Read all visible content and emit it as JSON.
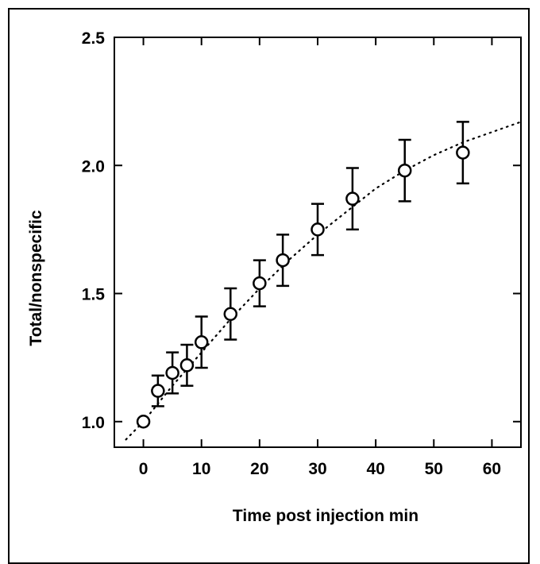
{
  "chart_data": {
    "type": "scatter",
    "xlabel": "Time post injection min",
    "ylabel": "Total/nonspecific",
    "xlim": [
      -5,
      65
    ],
    "ylim": [
      0.9,
      2.5
    ],
    "xticks": [
      0,
      10,
      20,
      30,
      40,
      50,
      60
    ],
    "yticks": [
      1.0,
      1.5,
      2.0,
      2.5
    ],
    "xtick_labels": [
      "0",
      "10",
      "20",
      "30",
      "40",
      "50",
      "60"
    ],
    "ytick_labels": [
      "1.0",
      "1.5",
      "2.0",
      "2.5"
    ],
    "grid": false,
    "marker": "open-circle",
    "points": [
      {
        "x": 0,
        "y": 1.0,
        "err": 0
      },
      {
        "x": 2.5,
        "y": 1.12,
        "err": 0.06
      },
      {
        "x": 5,
        "y": 1.19,
        "err": 0.08
      },
      {
        "x": 7.5,
        "y": 1.22,
        "err": 0.08
      },
      {
        "x": 10,
        "y": 1.31,
        "err": 0.1
      },
      {
        "x": 15,
        "y": 1.42,
        "err": 0.1
      },
      {
        "x": 20,
        "y": 1.54,
        "err": 0.09
      },
      {
        "x": 24,
        "y": 1.63,
        "err": 0.1
      },
      {
        "x": 30,
        "y": 1.75,
        "err": 0.1
      },
      {
        "x": 36,
        "y": 1.87,
        "err": 0.12
      },
      {
        "x": 45,
        "y": 1.98,
        "err": 0.12
      },
      {
        "x": 55,
        "y": 2.05,
        "err": 0.12
      }
    ],
    "fit_line": {
      "style": "dotted",
      "x": [
        -3,
        0,
        5,
        10,
        15,
        20,
        25,
        30,
        35,
        40,
        45,
        50,
        55,
        60,
        65
      ],
      "y": [
        0.93,
        1.0,
        1.14,
        1.27,
        1.4,
        1.52,
        1.63,
        1.73,
        1.82,
        1.91,
        1.98,
        2.04,
        2.09,
        2.13,
        2.17
      ]
    }
  }
}
